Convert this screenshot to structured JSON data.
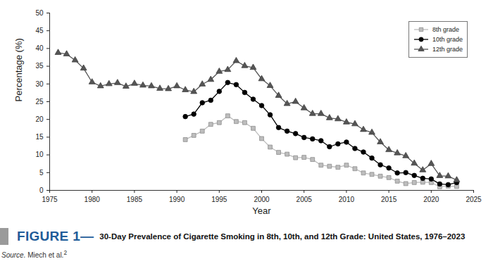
{
  "chart_data": {
    "type": "line",
    "figure_label": "FIGURE 1—",
    "title": "30-Day Prevalence of Cigarette Smoking in 8th, 10th, and 12th Grade: United States, 1976–2023",
    "source_label": "Source.",
    "source": "Miech et al.",
    "source_ref": "2",
    "x_label": "Year",
    "y_label": "Percentage (%)",
    "x": [
      1976,
      1977,
      1978,
      1979,
      1980,
      1981,
      1982,
      1983,
      1984,
      1985,
      1986,
      1987,
      1988,
      1989,
      1990,
      1991,
      1992,
      1993,
      1994,
      1995,
      1996,
      1997,
      1998,
      1999,
      2000,
      2001,
      2002,
      2003,
      2004,
      2005,
      2006,
      2007,
      2008,
      2009,
      2010,
      2011,
      2012,
      2013,
      2014,
      2015,
      2016,
      2017,
      2018,
      2019,
      2020,
      2021,
      2022,
      2023
    ],
    "series": [
      {
        "name": "8th grade",
        "color": "#bdbdbd",
        "marker": "square",
        "values": [
          null,
          null,
          null,
          null,
          null,
          null,
          null,
          null,
          null,
          null,
          null,
          null,
          null,
          null,
          null,
          14.3,
          15.5,
          16.7,
          18.6,
          19.1,
          21.0,
          19.4,
          19.1,
          17.5,
          14.6,
          12.2,
          10.7,
          10.2,
          9.2,
          9.3,
          8.7,
          7.1,
          6.8,
          6.5,
          7.1,
          6.1,
          4.9,
          4.5,
          4.0,
          3.6,
          2.6,
          1.9,
          2.2,
          2.3,
          2.2,
          1.0,
          1.2,
          1.1
        ]
      },
      {
        "name": "10th grade",
        "color": "#000000",
        "marker": "circle",
        "values": [
          null,
          null,
          null,
          null,
          null,
          null,
          null,
          null,
          null,
          null,
          null,
          null,
          null,
          null,
          null,
          20.8,
          21.5,
          24.7,
          25.4,
          27.9,
          30.4,
          29.8,
          27.6,
          25.7,
          23.9,
          21.3,
          17.7,
          16.7,
          16.0,
          14.9,
          14.5,
          14.0,
          12.3,
          13.1,
          13.6,
          11.8,
          10.8,
          9.1,
          7.2,
          6.3,
          4.9,
          5.0,
          4.2,
          3.4,
          3.2,
          1.8,
          1.6,
          2.2
        ]
      },
      {
        "name": "12th grade",
        "color": "#555555",
        "marker": "triangle",
        "values": [
          38.8,
          38.4,
          36.7,
          34.4,
          30.5,
          29.4,
          30.0,
          30.3,
          29.3,
          30.1,
          29.6,
          29.4,
          28.7,
          28.6,
          29.4,
          28.3,
          27.8,
          29.9,
          31.2,
          33.5,
          34.0,
          36.5,
          35.1,
          34.6,
          31.4,
          29.5,
          26.7,
          24.4,
          25.0,
          23.2,
          21.6,
          21.6,
          20.4,
          20.1,
          19.2,
          18.7,
          17.1,
          16.3,
          13.6,
          11.4,
          10.5,
          9.7,
          7.6,
          5.7,
          7.5,
          4.1,
          4.0,
          2.9
        ]
      }
    ],
    "xlim": [
      1975,
      2025
    ],
    "xticks": [
      1975,
      1980,
      1985,
      1990,
      1995,
      2000,
      2005,
      2010,
      2015,
      2020,
      2025
    ],
    "ylim": [
      0,
      50
    ],
    "yticks": [
      0,
      5,
      10,
      15,
      20,
      25,
      30,
      35,
      40,
      45,
      50
    ],
    "grid": false,
    "legend": "top-right"
  }
}
